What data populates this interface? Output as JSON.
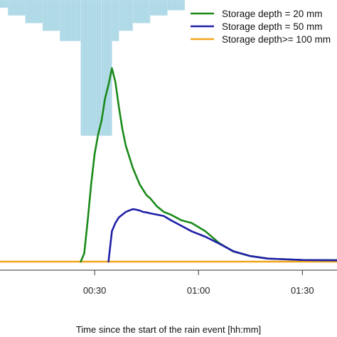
{
  "chart_data": {
    "type": "line",
    "xlabel": "Time since the start of the rain event [hh:mm]",
    "ylabel": "",
    "xlim": [
      0,
      100
    ],
    "ylim": [
      0,
      100
    ],
    "x_ticks": [
      {
        "value": 30,
        "label": "00:30"
      },
      {
        "value": 60,
        "label": "01:00"
      },
      {
        "value": 90,
        "label": "01:30"
      }
    ],
    "legend": {
      "position": "top-right"
    },
    "rainfall_bars": {
      "color": "#add8e6",
      "bins": [
        {
          "start": 0,
          "end": 5,
          "depth": 3
        },
        {
          "start": 5,
          "end": 10,
          "depth": 6
        },
        {
          "start": 10,
          "end": 15,
          "depth": 9
        },
        {
          "start": 15,
          "end": 20,
          "depth": 12
        },
        {
          "start": 20,
          "end": 26,
          "depth": 16
        },
        {
          "start": 26,
          "end": 32,
          "depth": 53
        },
        {
          "start": 32,
          "end": 35,
          "depth": 53
        },
        {
          "start": 35,
          "end": 37,
          "depth": 16
        },
        {
          "start": 37,
          "end": 41,
          "depth": 12
        },
        {
          "start": 41,
          "end": 46,
          "depth": 9
        },
        {
          "start": 46,
          "end": 51,
          "depth": 6
        },
        {
          "start": 51,
          "end": 56,
          "depth": 4
        }
      ]
    },
    "series": [
      {
        "name": "Storage depth = 20 mm",
        "color": "#1a8a1a",
        "x": [
          26,
          27,
          28,
          29,
          30,
          31,
          32,
          33,
          34,
          35,
          36,
          37,
          38,
          39,
          40,
          41,
          42,
          43,
          44,
          45,
          46,
          48,
          50,
          52,
          55,
          58,
          62,
          66,
          70,
          75,
          80,
          90,
          100
        ],
        "y": [
          0,
          3,
          15,
          28,
          39,
          46,
          51,
          59,
          64,
          70,
          65,
          56,
          48,
          42,
          38,
          34,
          31,
          28,
          26,
          24,
          23,
          20,
          18,
          17,
          15,
          14,
          11,
          6.7,
          3.7,
          2,
          1.1,
          0.6,
          0.5
        ]
      },
      {
        "name": "Storage depth = 50 mm",
        "color": "#1f1fa8",
        "x": [
          34,
          35,
          36,
          37,
          38,
          39,
          40,
          41,
          42,
          43,
          44,
          45,
          46,
          48,
          50,
          52,
          55,
          58,
          62,
          66,
          70,
          75,
          80,
          90,
          100
        ],
        "y": [
          0,
          11,
          14,
          16,
          17,
          18,
          18.5,
          19,
          18.8,
          18.5,
          18,
          17.8,
          17.5,
          17,
          16.5,
          15,
          13,
          11,
          9,
          6.5,
          3.8,
          2,
          1.1,
          0.6,
          0.5
        ]
      },
      {
        "name": "Storage depth>= 100 mm",
        "color": "#f2a51a",
        "x": [
          0,
          100
        ],
        "y": [
          0,
          0
        ]
      }
    ]
  }
}
